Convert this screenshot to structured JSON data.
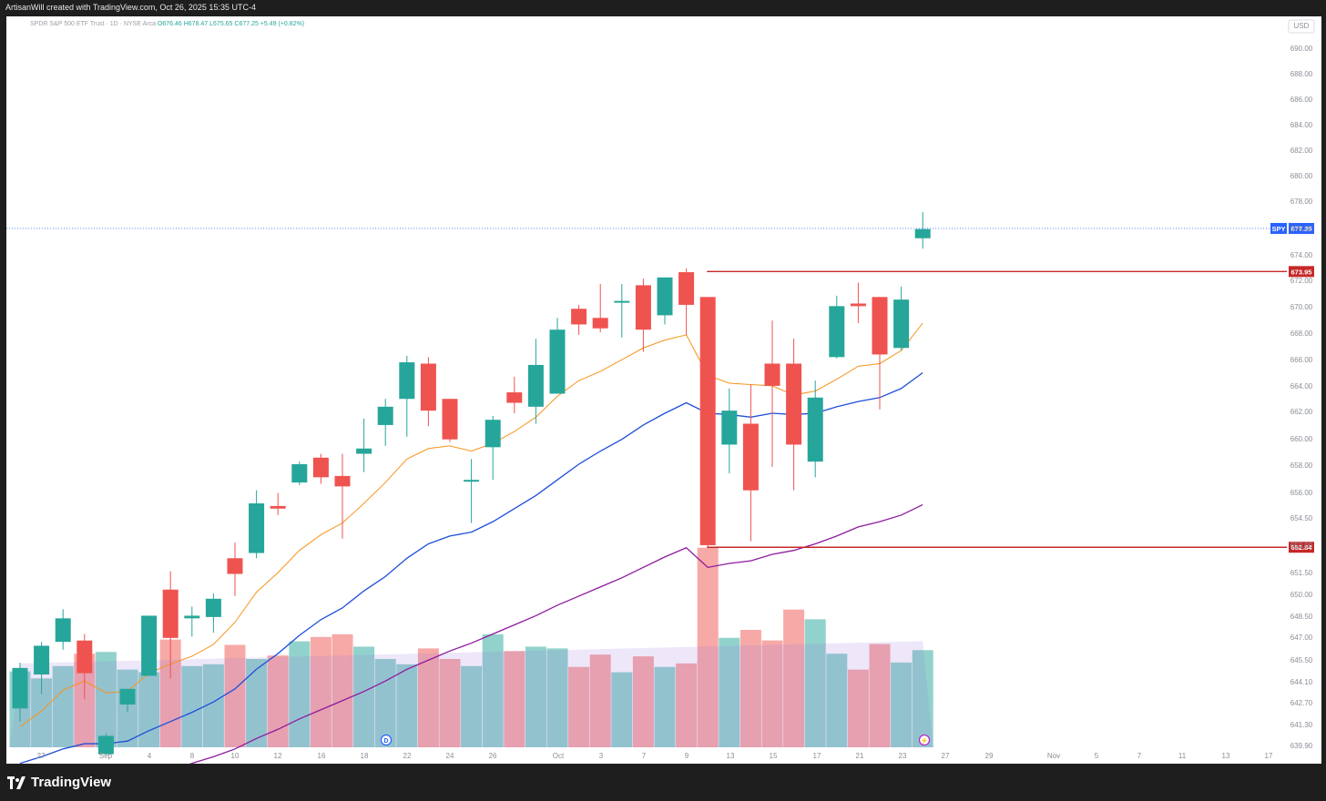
{
  "header": {
    "creator_line": "ArtisanWill created with TradingView.com, Oct 26, 2025 15:35 UTC-4",
    "symbol_line": "SPDR S&P 500 ETF Trust · 1D · NYSE Arca",
    "ohlc": "O676.46 H678.47 L675.65 C677.25 +5.49 (+0.82%)"
  },
  "footer": {
    "brand": "TradingView"
  },
  "colors": {
    "up": "#26a69a",
    "down": "#ef5350",
    "ema_short": "#f7931a",
    "ema_mid": "#1e4fd8",
    "ema_long": "#8e1a9e",
    "level": "#c62828",
    "price_line": "#2962ff"
  },
  "chart_data": {
    "type": "candlestick",
    "symbol": "SPY",
    "currency": "USD",
    "y_range": [
      637.0,
      692.0
    ],
    "y_ticks": [
      "690.00",
      "688.00",
      "686.00",
      "684.00",
      "682.00",
      "680.00",
      "678.00",
      "676.00",
      "674.00",
      "672.00",
      "670.00",
      "668.00",
      "666.00",
      "664.00",
      "662.00",
      "660.00",
      "658.00",
      "656.00",
      "654.50",
      "653.00",
      "651.50",
      "650.00",
      "648.50",
      "647.00",
      "645.50",
      "644.10",
      "642.70",
      "641.30",
      "639.90",
      "638.50"
    ],
    "x_ticks": [
      "27",
      "Sep",
      "4",
      "8",
      "10",
      "12",
      "16",
      "18",
      "22",
      "24",
      "26",
      "Oct",
      "3",
      "7",
      "9",
      "13",
      "15",
      "17",
      "21",
      "23",
      "27",
      "29",
      "Nov",
      "5",
      "7",
      "11",
      "13",
      "17"
    ],
    "candles": [
      {
        "o": 640.5,
        "h": 644.0,
        "l": 639.5,
        "c": 643.6
      },
      {
        "o": 643.1,
        "h": 645.6,
        "l": 641.6,
        "c": 645.3
      },
      {
        "o": 645.6,
        "h": 648.1,
        "l": 645.0,
        "c": 647.4
      },
      {
        "o": 645.7,
        "h": 646.2,
        "l": 641.2,
        "c": 643.2
      },
      {
        "o": 637.0,
        "h": 638.6,
        "l": 637.0,
        "c": 638.4
      },
      {
        "o": 640.8,
        "h": 642.0,
        "l": 640.2,
        "c": 642.0
      },
      {
        "o": 643.0,
        "h": 647.6,
        "l": 643.0,
        "c": 647.6
      },
      {
        "o": 649.6,
        "h": 651.0,
        "l": 642.8,
        "c": 645.9
      },
      {
        "o": 647.4,
        "h": 648.3,
        "l": 646.0,
        "c": 647.6
      },
      {
        "o": 647.5,
        "h": 649.3,
        "l": 646.3,
        "c": 648.9
      },
      {
        "o": 652.0,
        "h": 653.2,
        "l": 649.1,
        "c": 650.8
      },
      {
        "o": 652.4,
        "h": 657.2,
        "l": 652.0,
        "c": 656.2
      },
      {
        "o": 656.0,
        "h": 657.0,
        "l": 655.3,
        "c": 655.8
      },
      {
        "o": 657.8,
        "h": 659.4,
        "l": 657.6,
        "c": 659.2
      },
      {
        "o": 659.7,
        "h": 660.0,
        "l": 657.7,
        "c": 658.2
      },
      {
        "o": 658.3,
        "h": 660.0,
        "l": 653.5,
        "c": 657.5
      },
      {
        "o": 660.0,
        "h": 662.7,
        "l": 658.6,
        "c": 660.4
      },
      {
        "o": 662.2,
        "h": 664.2,
        "l": 660.6,
        "c": 663.6
      },
      {
        "o": 664.2,
        "h": 667.5,
        "l": 661.3,
        "c": 667.0
      },
      {
        "o": 666.9,
        "h": 667.4,
        "l": 662.1,
        "c": 663.3
      },
      {
        "o": 664.2,
        "h": 664.2,
        "l": 660.9,
        "c": 661.1
      },
      {
        "o": 658.0,
        "h": 659.6,
        "l": 654.7,
        "c": 658.0
      },
      {
        "o": 660.5,
        "h": 662.9,
        "l": 658.0,
        "c": 662.6
      },
      {
        "o": 664.7,
        "h": 665.9,
        "l": 663.1,
        "c": 663.9
      },
      {
        "o": 663.6,
        "h": 668.8,
        "l": 662.3,
        "c": 666.8
      },
      {
        "o": 664.6,
        "h": 670.4,
        "l": 664.6,
        "c": 669.5
      },
      {
        "o": 671.1,
        "h": 671.4,
        "l": 669.1,
        "c": 669.9
      },
      {
        "o": 670.4,
        "h": 673.0,
        "l": 669.3,
        "c": 669.6
      },
      {
        "o": 671.7,
        "h": 673.0,
        "l": 668.9,
        "c": 671.7
      },
      {
        "o": 672.9,
        "h": 673.4,
        "l": 667.8,
        "c": 669.5
      },
      {
        "o": 670.6,
        "h": 673.5,
        "l": 669.9,
        "c": 673.5
      },
      {
        "o": 673.9,
        "h": 674.2,
        "l": 669.1,
        "c": 671.4
      },
      {
        "o": 672.0,
        "h": 672.0,
        "l": 652.9,
        "c": 653.0
      },
      {
        "o": 660.7,
        "h": 665.0,
        "l": 658.5,
        "c": 663.3
      },
      {
        "o": 662.3,
        "h": 665.3,
        "l": 653.3,
        "c": 657.2
      },
      {
        "o": 666.9,
        "h": 670.2,
        "l": 659.0,
        "c": 665.2
      },
      {
        "o": 666.9,
        "h": 668.8,
        "l": 657.2,
        "c": 660.7
      },
      {
        "o": 659.4,
        "h": 665.6,
        "l": 658.2,
        "c": 664.3
      },
      {
        "o": 667.4,
        "h": 672.1,
        "l": 667.3,
        "c": 671.3
      },
      {
        "o": 671.5,
        "h": 673.1,
        "l": 670.0,
        "c": 671.3
      },
      {
        "o": 672.0,
        "h": 672.0,
        "l": 663.4,
        "c": 667.6
      },
      {
        "o": 668.1,
        "h": 672.8,
        "l": 667.9,
        "c": 671.8
      },
      {
        "o": 676.5,
        "h": 678.5,
        "l": 675.7,
        "c": 677.2
      }
    ],
    "ema_short": [
      639.1,
      640.3,
      641.9,
      642.6,
      641.7,
      641.8,
      643.2,
      643.9,
      644.5,
      645.4,
      647.1,
      649.4,
      650.9,
      652.6,
      653.8,
      654.7,
      656.2,
      657.8,
      659.6,
      660.4,
      660.6,
      660.2,
      660.8,
      661.7,
      662.8,
      664.4,
      665.6,
      666.3,
      667.2,
      668.1,
      668.7,
      669.1,
      666.0,
      665.4,
      665.3,
      665.2,
      664.5,
      664.8,
      665.7,
      666.7,
      666.9,
      667.9,
      670.0
    ],
    "ema_mid": [
      636.3,
      636.8,
      637.4,
      637.8,
      637.8,
      638.0,
      638.8,
      639.5,
      640.2,
      641.0,
      642.0,
      643.5,
      644.7,
      646.1,
      647.3,
      648.2,
      649.5,
      650.6,
      652.0,
      653.1,
      653.7,
      654.0,
      654.8,
      655.8,
      656.8,
      658.0,
      659.2,
      660.2,
      661.1,
      662.2,
      663.1,
      663.9,
      663.1,
      663.0,
      662.8,
      663.1,
      663.0,
      663.1,
      663.6,
      664.0,
      664.3,
      665.0,
      666.2
    ],
    "ema_long": [
      632.8,
      633.3,
      633.8,
      634.3,
      634.6,
      634.8,
      635.2,
      635.7,
      636.3,
      636.8,
      637.4,
      638.2,
      638.9,
      639.7,
      640.4,
      641.1,
      641.8,
      642.6,
      643.5,
      644.2,
      644.9,
      645.5,
      646.2,
      646.9,
      647.6,
      648.4,
      649.1,
      649.8,
      650.5,
      651.3,
      652.1,
      652.8,
      651.3,
      651.6,
      651.8,
      652.3,
      652.6,
      653.1,
      653.7,
      654.4,
      654.8,
      655.3,
      656.1
    ],
    "volume_rel": [
      0.86,
      0.78,
      0.92,
      1.06,
      1.08,
      0.88,
      0.85,
      1.22,
      0.92,
      0.94,
      1.16,
      1.0,
      1.04,
      1.2,
      1.25,
      1.28,
      1.14,
      1.0,
      0.94,
      1.12,
      1.0,
      0.92,
      1.28,
      1.09,
      1.14,
      1.12,
      0.91,
      1.05,
      0.85,
      1.03,
      0.91,
      0.95,
      2.26,
      1.24,
      1.33,
      1.21,
      1.56,
      1.45,
      1.06,
      0.88,
      1.17,
      0.96,
      1.1
    ],
    "levels": [
      {
        "price": 673.95,
        "label": "673.95"
      },
      {
        "price": 652.84,
        "label": "652.84"
      }
    ],
    "last_price": {
      "price": 677.25,
      "label": "677.25",
      "symbol_tag": "SPY"
    },
    "markers": [
      {
        "text": "D",
        "at_tick": "18"
      },
      {
        "text": "⚡",
        "at_tick": "23"
      }
    ],
    "grid": false
  }
}
